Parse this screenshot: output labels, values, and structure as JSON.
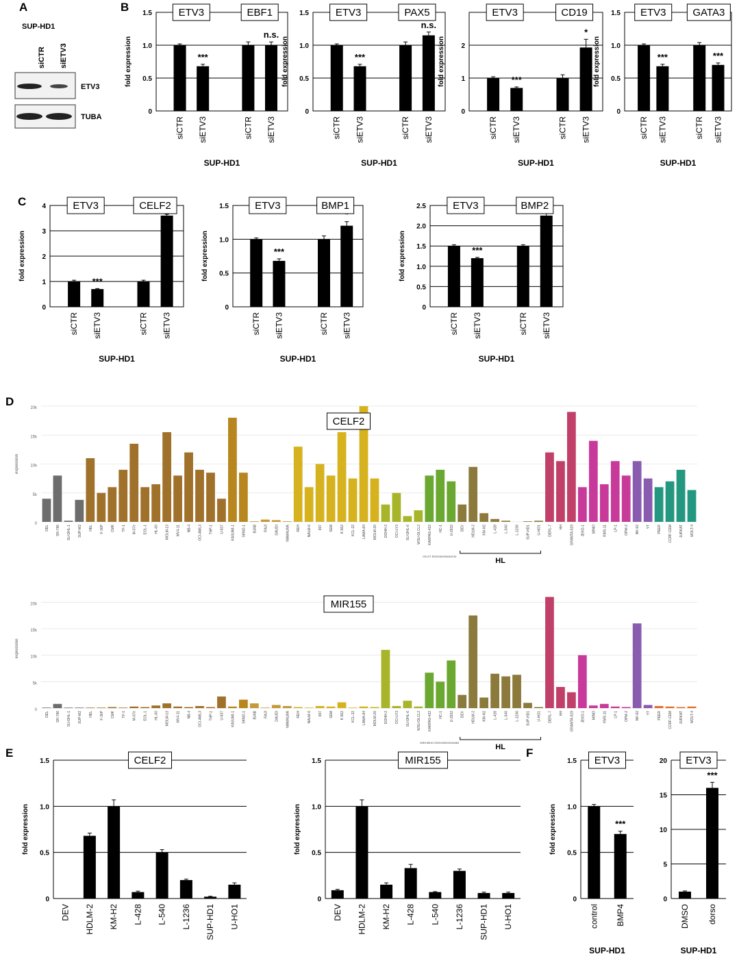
{
  "panel_labels": [
    "A",
    "B",
    "C",
    "D",
    "E",
    "F"
  ],
  "blot": {
    "cell_line": "SUP-HD1",
    "lanes": [
      "siCTR",
      "siETV3"
    ],
    "bands": [
      "ETV3",
      "TUBA"
    ]
  },
  "chart_data": [
    {
      "type": "bar",
      "boxes": [
        "ETV3",
        "EBF1"
      ],
      "categories": [
        "siCTR",
        "siETV3",
        "siCTR",
        "siETV3"
      ],
      "values": [
        1,
        0.68,
        1,
        1
      ],
      "errors": [
        0.02,
        0.03,
        0.05,
        0.05
      ],
      "significance": [
        null,
        "***",
        null,
        "n.s."
      ],
      "ylim": [
        0,
        1.5
      ],
      "yticks": [
        0,
        0.5,
        {
          "value": 1,
          "label": "1.0"
        },
        1.5
      ],
      "ylabel": "fold expression",
      "xlabel": "SUP-HD1",
      "color": "#000000",
      "frame": true
    },
    {
      "type": "bar",
      "boxes": [
        "ETV3",
        "PAX5"
      ],
      "categories": [
        "siCTR",
        "siETV3",
        "siCTR",
        "siETV3"
      ],
      "values": [
        1,
        0.68,
        1,
        1.15
      ],
      "errors": [
        0.02,
        0.03,
        0.05,
        0.05
      ],
      "significance": [
        null,
        "***",
        null,
        "n.s."
      ],
      "ylim": [
        0,
        1.5
      ],
      "yticks": [
        0,
        0.5,
        {
          "value": 1,
          "label": "1.0"
        },
        1.5
      ],
      "ylabel": "fold expression",
      "xlabel": "SUP-HD1",
      "color": "#000000",
      "frame": true
    },
    {
      "type": "bar",
      "boxes": [
        "ETV3",
        "CD19"
      ],
      "categories": [
        "siCTR",
        "siETV3",
        "siCTR",
        "siETV3"
      ],
      "values": [
        1,
        0.7,
        1,
        1.93
      ],
      "errors": [
        0.04,
        0.03,
        0.1,
        0.25
      ],
      "significance": [
        null,
        "***",
        null,
        "*"
      ],
      "ylim": [
        0,
        3
      ],
      "yticks": [
        0,
        1,
        2
      ],
      "ylabel": "fold expression",
      "xlabel": "SUP-HD1",
      "color": "#000000",
      "frame": true
    },
    {
      "type": "bar",
      "boxes": [
        "ETV3",
        "GATA3"
      ],
      "categories": [
        "siCTR",
        "siETV3",
        "siCTR",
        "siETV3"
      ],
      "values": [
        1,
        0.68,
        1,
        0.7
      ],
      "errors": [
        0.02,
        0.03,
        0.04,
        0.03
      ],
      "significance": [
        null,
        "***",
        null,
        "***"
      ],
      "ylim": [
        0,
        1.5
      ],
      "yticks": [
        0,
        0.5,
        {
          "value": 1,
          "label": "1.0"
        },
        1.5
      ],
      "ylabel": "fold expression",
      "xlabel": "SUP-HD1",
      "color": "#000000",
      "frame": true
    },
    {
      "type": "bar",
      "boxes": [
        "ETV3",
        "CELF2"
      ],
      "categories": [
        "siCTR",
        "siETV3",
        "siCTR",
        "siETV3"
      ],
      "values": [
        1,
        0.7,
        1,
        3.6
      ],
      "errors": [
        0.05,
        0.02,
        0.05,
        0.05
      ],
      "significance": [
        null,
        "***",
        null,
        "***"
      ],
      "ylim": [
        0,
        4
      ],
      "yticks": [
        0,
        1,
        2,
        3,
        4
      ],
      "ylabel": "fold expression",
      "xlabel": "SUP-HD1",
      "color": "#000000",
      "frame": true
    },
    {
      "type": "bar",
      "boxes": [
        "ETV3",
        "BMP1"
      ],
      "categories": [
        "siCTR",
        "siETV3",
        "siCTR",
        "siETV3"
      ],
      "values": [
        1,
        0.68,
        1,
        1.2
      ],
      "errors": [
        0.02,
        0.03,
        0.05,
        0.06
      ],
      "significance": [
        null,
        "***",
        null,
        "*"
      ],
      "ylim": [
        0,
        1.5
      ],
      "yticks": [
        0,
        0.5,
        {
          "value": 1,
          "label": "1.0"
        },
        1.5
      ],
      "ylabel": "fold expression",
      "xlabel": "SUP-HD1",
      "color": "#000000",
      "frame": true
    },
    {
      "type": "bar",
      "boxes": [
        "ETV3",
        "BMP2"
      ],
      "categories": [
        "siCTR",
        "siETV3",
        "siCTR",
        "siETV3"
      ],
      "values": [
        1.5,
        1.2,
        1.5,
        2.25
      ],
      "errors": [
        0.03,
        0.02,
        0.03,
        0.05
      ],
      "significance": [
        null,
        "***",
        null,
        "***"
      ],
      "ylim": [
        0,
        2.5
      ],
      "yticks": [
        0,
        0.5,
        {
          "value": 1,
          "label": "1.0"
        },
        1.5,
        {
          "value": 2,
          "label": "2.0"
        },
        2.5
      ],
      "ylabel": "fold expression",
      "xlabel": "SUP-HD1",
      "color": "#000000",
      "frame": true
    },
    {
      "type": "bar",
      "boxes": [
        "CELF2"
      ],
      "footnote": "CELF2 ENSG00000048740",
      "bracket": "HL",
      "ylabel": "expression",
      "ylim": [
        0,
        20000
      ],
      "yticks": [
        0,
        {
          "value": 5000,
          "label": "5k"
        },
        {
          "value": 10000,
          "label": "10k"
        },
        {
          "value": 15000,
          "label": "15k"
        },
        {
          "value": 20000,
          "label": "20k"
        }
      ],
      "categories": [
        "DEL",
        "SR-786",
        "SU-DHL-1",
        "SUP-M2",
        "HEL",
        "F-36P",
        "CMK",
        "TF-1",
        "M-07e",
        "EOL-1",
        "HL-60",
        "MOLM-13",
        "MV4-11",
        "NB-4",
        "OCI-AML3",
        "THP-1",
        "U-937",
        "KASUMI-1",
        "SKNO-1",
        "BJAB",
        "RAJI",
        "DAUDI",
        "NAMALWA",
        "REH",
        "NALM-6",
        "697",
        "SEM",
        "K-562",
        "KCL-22",
        "LAMA-84",
        "MOLM-20",
        "DOHH-2",
        "OCI-LY3",
        "SU-DHL-6",
        "WSU-DLCL2",
        "KARPAS-422",
        "HC-1",
        "U-2932",
        "DEV",
        "HDLM-2",
        "KM-H2",
        "L-428",
        "L-540",
        "L-1236",
        "SUP-HD1",
        "U-HO1",
        "DERL-7",
        "HH",
        "GRANTA-519",
        "JEKO-1",
        "MINO",
        "KMS-11",
        "LP-1",
        "OPM-2",
        "NK-92",
        "YT",
        "PEER",
        "CCRF-CEM",
        "JURKAT",
        "MOLT-4"
      ],
      "values": [
        4000,
        8000,
        200,
        3800,
        11000,
        5000,
        6000,
        9000,
        13500,
        6000,
        6500,
        15500,
        8000,
        12000,
        9000,
        8500,
        4000,
        18000,
        8500,
        100,
        400,
        300,
        100,
        13000,
        6000,
        10000,
        8000,
        15500,
        7500,
        20000,
        7500,
        3000,
        5000,
        1000,
        2000,
        8000,
        9000,
        7000,
        3000,
        9500,
        1500,
        500,
        200,
        0,
        100,
        200,
        12000,
        10500,
        19000,
        6000,
        14000,
        6500,
        10500,
        8000,
        10500,
        7500,
        6000,
        7000,
        9000,
        5500
      ],
      "colors": [
        "#6d6d6d",
        "#6d6d6d",
        "#6d6d6d",
        "#6d6d6d",
        "#a0712a",
        "#a0712a",
        "#a0712a",
        "#a0712a",
        "#a0712a",
        "#a0712a",
        "#a0712a",
        "#a0712a",
        "#a0712a",
        "#a0712a",
        "#a0712a",
        "#a0712a",
        "#a0712a",
        "#b8861e",
        "#b8861e",
        "#c49a3a",
        "#c49a3a",
        "#c49a3a",
        "#c49a3a",
        "#d6b21e",
        "#d6b21e",
        "#d6b21e",
        "#d6b21e",
        "#d6b21e",
        "#d6b21e",
        "#d6b21e",
        "#d6b21e",
        "#a8b52a",
        "#a8b52a",
        "#a8b52a",
        "#a8b52a",
        "#6aa832",
        "#6aa832",
        "#6aa832",
        "#8c7a3c",
        "#8c7a3c",
        "#8c7a3c",
        "#8c7a3c",
        "#8c7a3c",
        "#8c7a3c",
        "#8c7a3c",
        "#8c7a3c",
        "#c0406a",
        "#c0406a",
        "#c0406a",
        "#c83a9a",
        "#c83a9a",
        "#c83a9a",
        "#c83a9a",
        "#c83a9a",
        "#8a5cb0",
        "#8a5cb0",
        "#23977f",
        "#23977f",
        "#23977f",
        "#23977f"
      ]
    },
    {
      "type": "bar",
      "boxes": [
        "MIR155"
      ],
      "footnote": "MIR155HG ENSG00000234883",
      "bracket": "HL",
      "ylabel": "expression",
      "ylim": [
        0,
        22500
      ],
      "yticks": [
        0,
        {
          "value": 5000,
          "label": "5k"
        },
        {
          "value": 10000,
          "label": "10k"
        },
        {
          "value": 15000,
          "label": "15k"
        },
        {
          "value": 20000,
          "label": "20k"
        }
      ],
      "categories": [
        "DEL",
        "SR-786",
        "SU-DHL-1",
        "SUP-M2",
        "HEL",
        "F-36P",
        "CMK",
        "TF-1",
        "M-07e",
        "EOL-1",
        "HL-60",
        "MOLM-13",
        "MV4-11",
        "NB-4",
        "OCI-AML3",
        "THP-1",
        "U-937",
        "KASUMI-1",
        "SKNO-1",
        "BJAB",
        "RAJI",
        "DAUDI",
        "NAMALWA",
        "REH",
        "NALM-6",
        "697",
        "SEM",
        "K-562",
        "KCL-22",
        "LAMA-84",
        "MOLM-20",
        "DOHH-2",
        "OCI-LY3",
        "SU-DHL-6",
        "WSU-DLCL2",
        "KARPAS-422",
        "HC-1",
        "U-2932",
        "DEV",
        "HDLM-2",
        "KM-H2",
        "L-428",
        "L-540",
        "L-1236",
        "SUP-HD1",
        "U-HO1",
        "DERL-7",
        "HH",
        "GRANTA-519",
        "JEKO-1",
        "MINO",
        "KMS-11",
        "LP-1",
        "OPM-2",
        "NK-92",
        "YT",
        "PEER",
        "CCRF-CEM",
        "JURKAT",
        "MOLT-4"
      ],
      "values": [
        100,
        800,
        100,
        100,
        100,
        100,
        200,
        100,
        300,
        200,
        500,
        900,
        300,
        200,
        400,
        200,
        2200,
        300,
        1600,
        900,
        100,
        600,
        400,
        200,
        100,
        400,
        300,
        1100,
        100,
        300,
        200,
        11000,
        400,
        1400,
        300,
        6700,
        5000,
        9000,
        2500,
        17500,
        2000,
        6500,
        6000,
        6300,
        1000,
        200,
        21000,
        4000,
        3000,
        10000,
        500,
        800,
        300,
        200,
        16000,
        600,
        400,
        300,
        200,
        300
      ],
      "colors": [
        "#6d6d6d",
        "#6d6d6d",
        "#6d6d6d",
        "#6d6d6d",
        "#a0712a",
        "#a0712a",
        "#a0712a",
        "#a0712a",
        "#a0712a",
        "#a0712a",
        "#a0712a",
        "#a0712a",
        "#a0712a",
        "#a0712a",
        "#a0712a",
        "#a0712a",
        "#a0712a",
        "#b8861e",
        "#b8861e",
        "#c49a3a",
        "#c49a3a",
        "#c49a3a",
        "#c49a3a",
        "#d6b21e",
        "#d6b21e",
        "#d6b21e",
        "#d6b21e",
        "#d6b21e",
        "#d6b21e",
        "#d6b21e",
        "#d6b21e",
        "#a8b52a",
        "#a8b52a",
        "#a8b52a",
        "#a8b52a",
        "#6aa832",
        "#6aa832",
        "#6aa832",
        "#8c7a3c",
        "#8c7a3c",
        "#8c7a3c",
        "#8c7a3c",
        "#8c7a3c",
        "#8c7a3c",
        "#8c7a3c",
        "#8c7a3c",
        "#c0406a",
        "#c0406a",
        "#c0406a",
        "#c83a9a",
        "#c83a9a",
        "#c83a9a",
        "#c83a9a",
        "#c83a9a",
        "#8a5cb0",
        "#8a5cb0",
        "#e0702a",
        "#e0702a",
        "#e0702a",
        "#e0702a"
      ]
    },
    {
      "type": "bar",
      "boxes": [
        "CELF2"
      ],
      "categories": [
        "DEV",
        "HDLM-2",
        "KM-H2",
        "L-428",
        "L-540",
        "L-1236",
        "SUP-HD1",
        "U-HO1"
      ],
      "values": [
        0,
        0.68,
        1,
        0.07,
        0.5,
        0.2,
        0.02,
        0.15
      ],
      "errors": [
        0,
        0.03,
        0.07,
        0.01,
        0.03,
        0.01,
        0.005,
        0.02
      ],
      "ylim": [
        0,
        1.5
      ],
      "yticks": [
        0,
        0.5,
        {
          "value": 1,
          "label": "1.0"
        },
        1.5
      ],
      "ylabel": "fold expression",
      "color": "#000000",
      "frame": false
    },
    {
      "type": "bar",
      "boxes": [
        "MIR155"
      ],
      "categories": [
        "DEV",
        "HDLM-2",
        "KM-H2",
        "L-428",
        "L-540",
        "L-1236",
        "SUP-HD1",
        "U-HO1"
      ],
      "values": [
        0.09,
        1,
        0.15,
        0.33,
        0.07,
        0.3,
        0.06,
        0.06
      ],
      "errors": [
        0.01,
        0.07,
        0.02,
        0.04,
        0.005,
        0.02,
        0.01,
        0.01
      ],
      "ylim": [
        0,
        1.5
      ],
      "yticks": [
        0,
        0.5,
        {
          "value": 1,
          "label": "1.0"
        },
        1.5
      ],
      "ylabel": "fold expression",
      "color": "#000000",
      "frame": false
    },
    {
      "type": "bar",
      "boxes": [
        "ETV3"
      ],
      "categories": [
        "control",
        "BMP4"
      ],
      "values": [
        1,
        0.7
      ],
      "errors": [
        0.02,
        0.03
      ],
      "significance": [
        null,
        "***"
      ],
      "ylim": [
        0,
        1.5
      ],
      "yticks": [
        0,
        0.5,
        {
          "value": 1,
          "label": "1.0"
        },
        1.5
      ],
      "ylabel": "fold expression",
      "xlabel": "SUP-HD1",
      "color": "#000000",
      "frame": false
    },
    {
      "type": "bar",
      "boxes": [
        "ETV3"
      ],
      "categories": [
        "DMSO",
        "dorso"
      ],
      "values": [
        1,
        16
      ],
      "errors": [
        0.1,
        0.8
      ],
      "significance": [
        null,
        "***"
      ],
      "ylim": [
        0,
        20
      ],
      "yticks": [
        0,
        5,
        10,
        15,
        20
      ],
      "xlabel": "SUP-HD1",
      "color": "#000000",
      "frame": false
    }
  ]
}
